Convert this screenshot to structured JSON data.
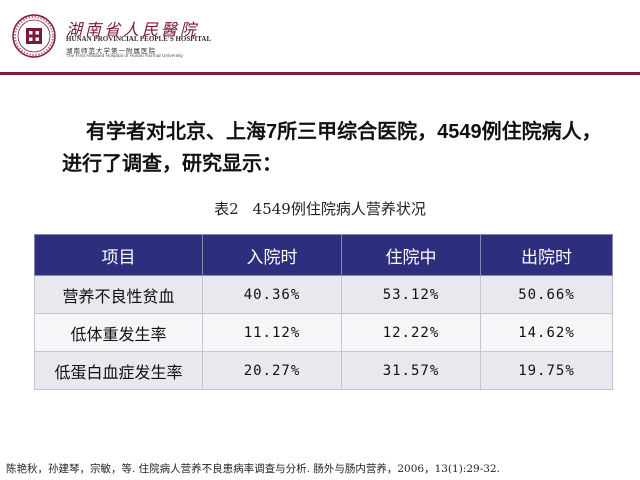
{
  "logo": {
    "name_cn": "湖南省人民醫院",
    "name_en": "HUNAN PROVINCIAL PEOPLE'S HOSPITAL",
    "subtitle_cn": "湖南师范大学第一附属医院",
    "subtitle_en": "The First Affiliated Hospital of Hunan Normal University",
    "seal": "湖南省人民医院"
  },
  "heading": "有学者对北京、上海7所三甲综合医院，4549例住院病人，进行了调查，研究显示：",
  "table": {
    "caption_label": "表2",
    "caption_text": "4549例住院病人营养状况",
    "headers": [
      "项目",
      "入院时",
      "住院中",
      "出院时"
    ],
    "rows": [
      {
        "label": "营养不良性贫血",
        "values": [
          "40.36%",
          "53.12%",
          "50.66%"
        ]
      },
      {
        "label": "低体重发生率",
        "values": [
          "11.12%",
          "12.22%",
          "14.62%"
        ]
      },
      {
        "label": "低蛋白血症发生率",
        "values": [
          "20.27%",
          "31.57%",
          "19.75%"
        ]
      }
    ]
  },
  "citation": "陈艳秋，孙建琴，宗敏，等. 住院病人营养不良患病率调查与分析. 肠外与肠内营养，2006，13(1):29-32.",
  "colors": {
    "header_bg": "#2e2e7f",
    "rule": "#7a1f3d",
    "row_alt": "#e8e8ee"
  }
}
